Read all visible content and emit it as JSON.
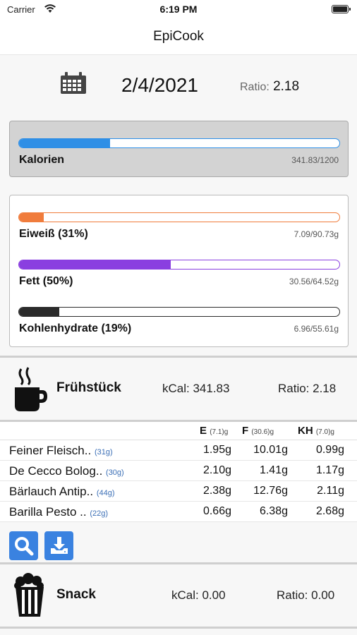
{
  "status": {
    "carrier": "Carrier",
    "time": "6:19 PM"
  },
  "nav": {
    "title": "EpiCook"
  },
  "date": {
    "value": "2/4/2021",
    "ratio_label": "Ratio:",
    "ratio_value": "2.18"
  },
  "calories": {
    "label": "Kalorien",
    "value": "341.83/1200",
    "fraction": 0.285,
    "color": "#2f8fe6"
  },
  "macros": [
    {
      "label": "Eiweiß (31%)",
      "value": "7.09/90.73g",
      "fraction": 0.078,
      "color": "#f07c3c"
    },
    {
      "label": "Fett (50%)",
      "value": "30.56/64.52g",
      "fraction": 0.474,
      "color": "#8a3fe0"
    },
    {
      "label": "Kohlenhydrate (19%)",
      "value": "6.96/55.61g",
      "fraction": 0.125,
      "color": "#2b2b2b"
    }
  ],
  "breakfast": {
    "name": "Frühstück",
    "kcal": "kCal: 341.83",
    "ratio": "Ratio: 2.18",
    "icon": "coffee-cup-icon",
    "headers": [
      {
        "label": "E",
        "sub": "(7.1)g"
      },
      {
        "label": "F",
        "sub": "(30.6)g"
      },
      {
        "label": "KH",
        "sub": "(7.0)g"
      }
    ],
    "rows": [
      {
        "name": "Feiner Fleisch..",
        "grams": "(31g)",
        "e": "1.95g",
        "f": "10.01g",
        "kh": "0.99g"
      },
      {
        "name": "De Cecco Bolog..",
        "grams": "(30g)",
        "e": "2.10g",
        "f": "1.41g",
        "kh": "1.17g"
      },
      {
        "name": "Bärlauch Antip..",
        "grams": "(44g)",
        "e": "2.38g",
        "f": "12.76g",
        "kh": "2.11g"
      },
      {
        "name": "Barilla Pesto ..",
        "grams": "(22g)",
        "e": "0.66g",
        "f": "6.38g",
        "kh": "2.68g"
      }
    ],
    "actions": [
      "search-icon",
      "download-icon"
    ]
  },
  "snack": {
    "name": "Snack",
    "kcal": "kCal: 0.00",
    "ratio": "Ratio: 0.00",
    "icon": "popcorn-icon"
  }
}
